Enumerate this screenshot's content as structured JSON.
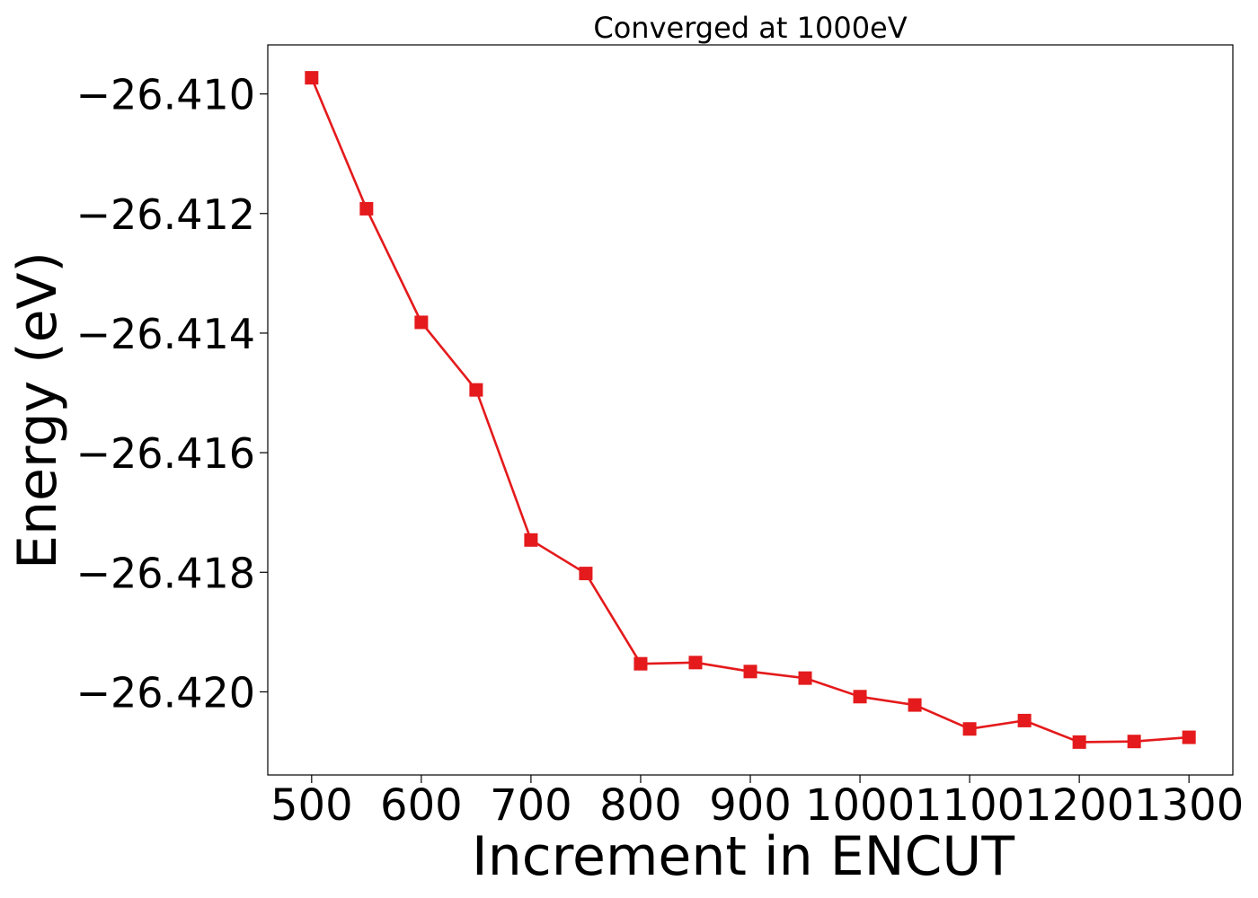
{
  "chart_data": {
    "type": "line",
    "title": "Converged at 1000eV",
    "xlabel": "Increment in ENCUT",
    "ylabel": "Energy (eV)",
    "x": [
      500,
      550,
      600,
      650,
      700,
      750,
      800,
      850,
      900,
      950,
      1000,
      1050,
      1100,
      1150,
      1200,
      1250,
      1300
    ],
    "series": [
      {
        "values": [
          -26.40973,
          -26.41192,
          -26.41382,
          -26.41495,
          -26.41746,
          -26.41802,
          -26.41953,
          -26.41951,
          -26.41966,
          -26.41977,
          -26.42008,
          -26.42022,
          -26.42062,
          -26.42048,
          -26.42084,
          -26.42083,
          -26.42076
        ],
        "color": "#e41a1c",
        "marker": "square"
      }
    ],
    "xlim": [
      460,
      1340
    ],
    "ylim": [
      -26.42139,
      -26.40918
    ],
    "xticks": [
      500,
      600,
      700,
      800,
      900,
      1000,
      1100,
      1200,
      1300
    ],
    "xtick_labels": [
      "500",
      "600",
      "700",
      "800",
      "900",
      "1000",
      "1100",
      "1200",
      "1300"
    ],
    "yticks": [
      -26.41,
      -26.412,
      -26.414,
      -26.416,
      -26.418,
      -26.42
    ],
    "ytick_labels": [
      "−26.410",
      "−26.412",
      "−26.414",
      "−26.416",
      "−26.418",
      "−26.420"
    ],
    "grid": false,
    "legend": false
  }
}
